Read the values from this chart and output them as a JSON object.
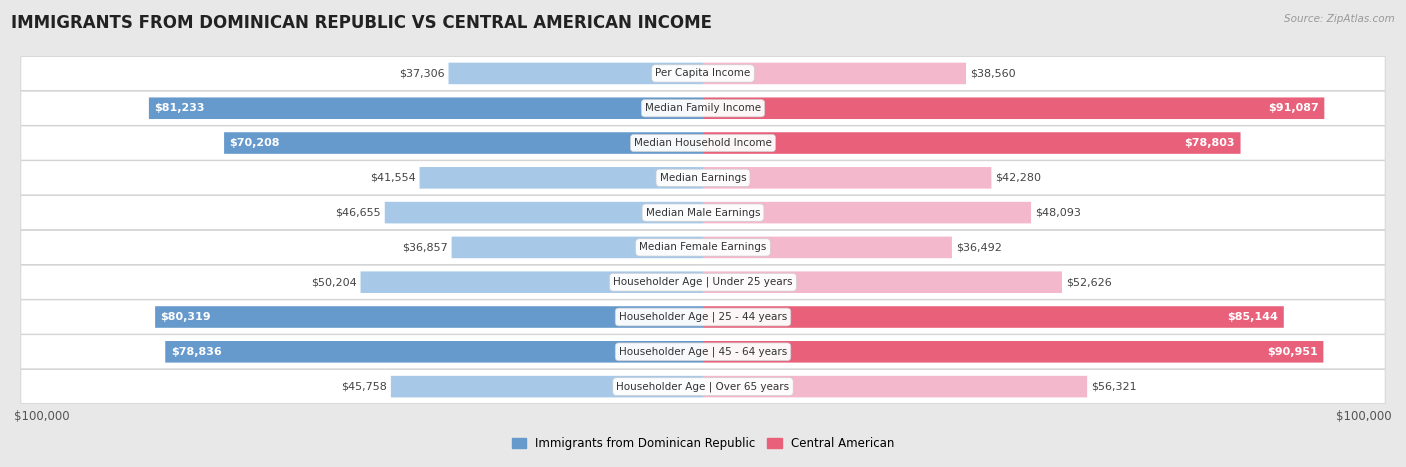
{
  "title": "IMMIGRANTS FROM DOMINICAN REPUBLIC VS CENTRAL AMERICAN INCOME",
  "source": "Source: ZipAtlas.com",
  "categories": [
    "Per Capita Income",
    "Median Family Income",
    "Median Household Income",
    "Median Earnings",
    "Median Male Earnings",
    "Median Female Earnings",
    "Householder Age | Under 25 years",
    "Householder Age | 25 - 44 years",
    "Householder Age | 45 - 64 years",
    "Householder Age | Over 65 years"
  ],
  "dominican_values": [
    37306,
    81233,
    70208,
    41554,
    46655,
    36857,
    50204,
    80319,
    78836,
    45758
  ],
  "central_values": [
    38560,
    91087,
    78803,
    42280,
    48093,
    36492,
    52626,
    85144,
    90951,
    56321
  ],
  "dominican_labels": [
    "$37,306",
    "$81,233",
    "$70,208",
    "$41,554",
    "$46,655",
    "$36,857",
    "$50,204",
    "$80,319",
    "$78,836",
    "$45,758"
  ],
  "central_labels": [
    "$38,560",
    "$91,087",
    "$78,803",
    "$42,280",
    "$48,093",
    "$36,492",
    "$52,626",
    "$85,144",
    "$90,951",
    "$56,321"
  ],
  "max_value": 100000,
  "dominican_color_light": "#a8c8e8",
  "dominican_color_dark": "#6699cc",
  "central_color_light": "#f4b8cc",
  "central_color_dark": "#e8607a",
  "background_color": "#e8e8e8",
  "row_bg_color": "#f8f8f8",
  "legend_dominican": "Immigrants from Dominican Republic",
  "legend_central": "Central American",
  "xlabel_left": "$100,000",
  "xlabel_right": "$100,000",
  "title_fontsize": 12,
  "label_fontsize": 8,
  "category_fontsize": 7.5,
  "bar_height": 0.62,
  "inside_label_threshold": 65000
}
